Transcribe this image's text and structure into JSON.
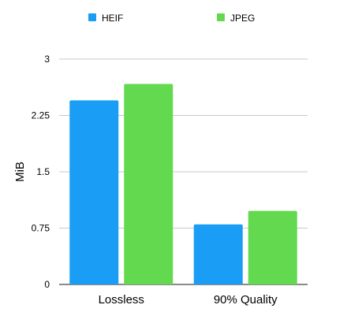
{
  "chart_data": {
    "type": "bar",
    "categories": [
      "Lossless",
      "90% Quality"
    ],
    "series": [
      {
        "name": "HEIF",
        "values": [
          2.45,
          0.8
        ],
        "color": "#1A9EF5"
      },
      {
        "name": "JPEG",
        "values": [
          2.67,
          0.98
        ],
        "color": "#62D94E"
      }
    ],
    "ylabel": "MiB",
    "xlabel": "",
    "ylim": [
      0,
      3
    ],
    "yticks": [
      0,
      0.75,
      1.5,
      2.25,
      3
    ],
    "ytick_labels": [
      "0",
      "0.75",
      "1.5",
      "2.25",
      "3"
    ],
    "grid": true,
    "legend_position": "top"
  }
}
